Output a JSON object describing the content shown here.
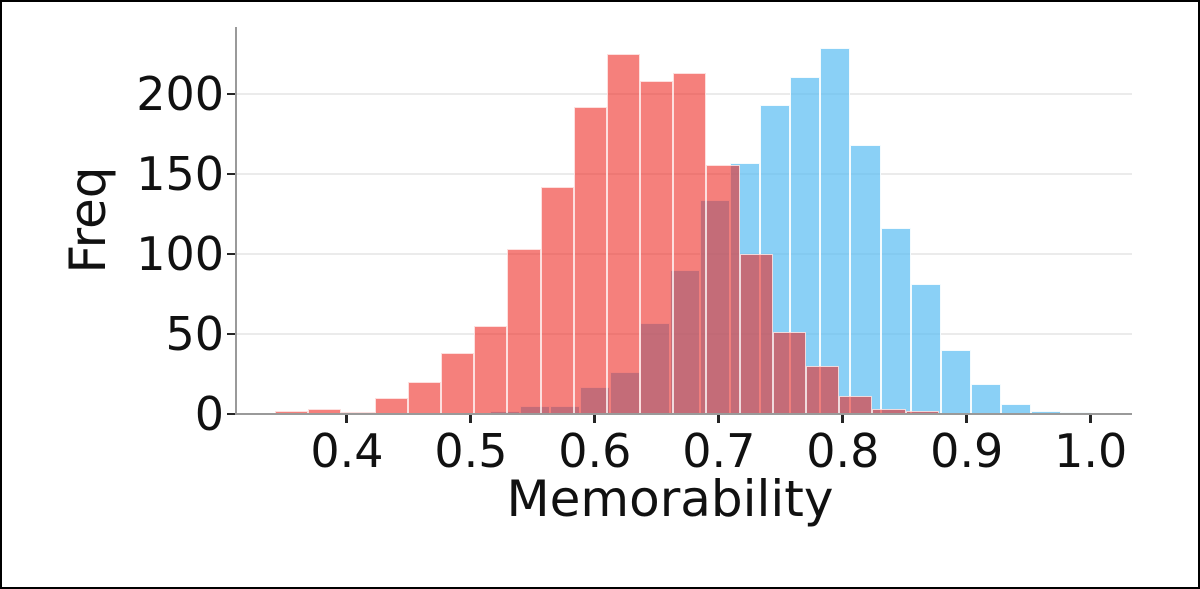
{
  "figure": {
    "background_color": "#ffffff",
    "frame_border_color": "#000000"
  },
  "chart_data": {
    "type": "bar",
    "subtype": "histogram-overlaid",
    "title": "",
    "xlabel": "Memorability",
    "ylabel": "Freq",
    "xlim": [
      0.3105,
      1.0333
    ],
    "ylim": [
      0,
      242
    ],
    "grid": "horizontal-only",
    "grid_color": "#ebebeb",
    "axis_line_color": "#9a9a9a",
    "tick_color": "#262626",
    "text_color": "#111111",
    "legend": "none",
    "x_ticks": [
      0.4,
      0.5,
      0.6,
      0.7,
      0.8,
      0.9,
      1.0
    ],
    "x_tick_labels": [
      "0.4",
      "0.5",
      "0.6",
      "0.7",
      "0.8",
      "0.9",
      "1.0"
    ],
    "y_ticks": [
      0,
      50,
      100,
      150,
      200
    ],
    "y_tick_labels": [
      "0",
      "50",
      "100",
      "150",
      "200"
    ],
    "overlap_observed_color": "#c4737f",
    "series": [
      {
        "name": "blue-distribution",
        "observed_color": "#8ad0f5",
        "fill": "rgba(80,185,242,0.67)",
        "bin_start": 0.5153,
        "bin_width": 0.02424,
        "counts": [
          2,
          5,
          5,
          17,
          26,
          57,
          90,
          134,
          157,
          193,
          211,
          229,
          168,
          116,
          81,
          40,
          19,
          6,
          2,
          1
        ]
      },
      {
        "name": "red-distribution",
        "observed_color": "#f5807c",
        "fill": "rgba(238,36,29,0.58)",
        "bin_start": 0.342,
        "bin_width": 0.02677,
        "counts": [
          2,
          3,
          1,
          10,
          20,
          38,
          55,
          103,
          142,
          192,
          225,
          208,
          213,
          156,
          100,
          51,
          30,
          11,
          3,
          2
        ]
      }
    ]
  }
}
